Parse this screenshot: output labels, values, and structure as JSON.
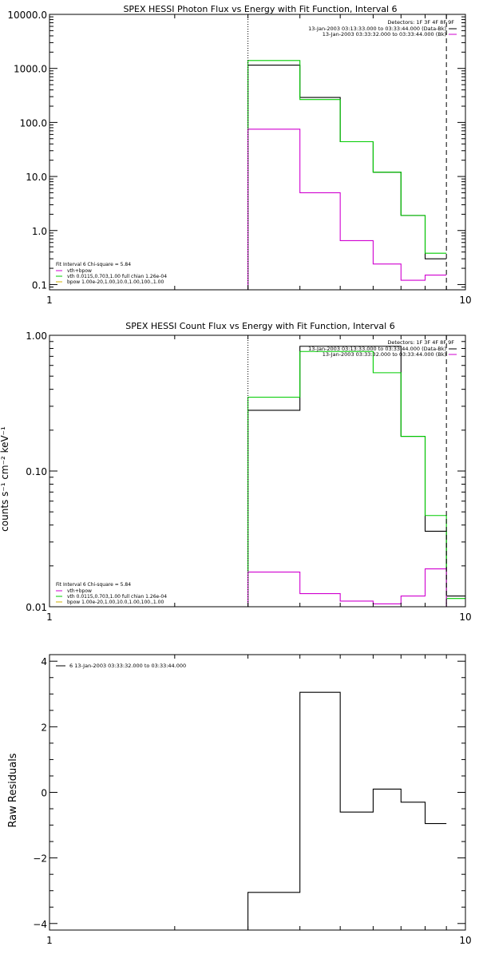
{
  "colors": {
    "data": "#000000",
    "vth": "#d000d0",
    "bpow": "#00cc00",
    "thick": "#d0b000"
  },
  "chart_data": [
    {
      "type": "line",
      "title": "SPEX HESSI Photon Flux vs Energy with Fit Function, Interval 6",
      "xscale": "log",
      "yscale": "log",
      "xlim": [
        1,
        10
      ],
      "ylim": [
        0.08,
        10000
      ],
      "xticks": [
        1,
        10
      ],
      "xtick_labels": [
        "1",
        "10"
      ],
      "yticks": [
        0.1,
        1,
        10,
        100,
        1000,
        10000
      ],
      "ytick_labels": [
        "0.1",
        "1.0",
        "10.0",
        "100.0",
        "1000.0",
        "10000.0"
      ],
      "ylabel": "",
      "legend_right": [
        "Detectors: 1F 3F 4F 8F 9F",
        "13-Jan-2003 03:13:33.000 to 03:33:44.000 (Data-Bk)",
        "13-Jan-2003 03:33:32.000 to 03:33:44.000 (Bk)"
      ],
      "legend_left_header": "Fit Interval 6   Chi-square = 5.84",
      "legend_left": [
        "vth+bpow",
        "vth 0.0115,0.703,1.00  full chian 1.26e-04",
        "bpow 1.00e-20,1.00,10.0,1.00,100.,1.00"
      ],
      "vlines": [
        {
          "x": 3,
          "style": "dotted"
        },
        {
          "x": 9,
          "style": "dashed"
        }
      ],
      "bin_edges": [
        3,
        4,
        5,
        6,
        7,
        8,
        9
      ],
      "series": [
        {
          "color": "#000000",
          "values": [
            1150,
            290,
            44,
            12,
            1.9,
            0.3
          ]
        },
        {
          "color": "#00cc00",
          "values": [
            1400,
            265,
            44,
            12,
            1.9,
            0.38
          ]
        },
        {
          "color": "#d000d0",
          "values": [
            75,
            5,
            0.65,
            0.24,
            0.12,
            0.15
          ]
        }
      ]
    },
    {
      "type": "line",
      "title": "SPEX HESSI Count Flux vs Energy with Fit Function, Interval 6",
      "xscale": "log",
      "yscale": "log",
      "xlim": [
        1,
        10
      ],
      "ylim": [
        0.01,
        1
      ],
      "xticks": [
        1,
        10
      ],
      "xtick_labels": [
        "1",
        "10"
      ],
      "yticks": [
        0.01,
        0.1,
        1
      ],
      "ytick_labels": [
        "0.01",
        "0.10",
        "1.00"
      ],
      "ylabel": "counts s⁻¹ cm⁻² keV⁻¹",
      "legend_right": [
        "Detectors: 1F 3F 4F 8F 9F",
        "13-Jan-2003 03:13:33.000 to 03:33:44.000 (Data-Bk)",
        "13-Jan-2003 03:33:32.000 to 03:33:44.000 (Bk)"
      ],
      "legend_left_header": "Fit Interval 6   Chi-square = 5.84",
      "legend_left": [
        "vth+bpow",
        "vth 0.0115,0.703,1.00  full chian 1.26e-04",
        "bpow 1.00e-20,1.00,10.0,1.00,100.,1.00"
      ],
      "vlines": [
        {
          "x": 3,
          "style": "dotted"
        },
        {
          "x": 9,
          "style": "dashed"
        }
      ],
      "bin_edges": [
        3,
        4,
        5,
        6,
        7,
        8,
        9,
        10
      ],
      "series": [
        {
          "color": "#000000",
          "values": [
            0.28,
            0.83,
            0.83,
            0.83,
            0.18,
            0.036,
            0.012
          ]
        },
        {
          "color": "#00cc00",
          "values": [
            0.35,
            0.76,
            0.76,
            0.53,
            0.18,
            0.047,
            0.0115
          ]
        },
        {
          "color": "#d000d0",
          "values": [
            0.018,
            0.0125,
            0.011,
            0.0105,
            0.012,
            0.019,
            0.0095
          ]
        }
      ]
    },
    {
      "type": "line",
      "title": "",
      "xscale": "log",
      "yscale": "linear",
      "xlim": [
        1,
        10
      ],
      "ylim": [
        -4.2,
        4.2
      ],
      "xticks": [
        1,
        10
      ],
      "xtick_labels": [
        "1",
        "10"
      ],
      "yticks": [
        -4,
        -2,
        0,
        2,
        4
      ],
      "ytick_labels": [
        "−4",
        "−2",
        "0",
        "2",
        "4"
      ],
      "ylabel": "Raw Residuals",
      "legend_item": "6  13-Jan-2003 03:33:32.000 to 03:33:44.000",
      "bin_edges": [
        3,
        4,
        5,
        6,
        7,
        8,
        9
      ],
      "series": [
        {
          "color": "#000000",
          "values": [
            -3.05,
            3.05,
            -0.6,
            0.1,
            -0.3,
            -0.95
          ]
        }
      ]
    }
  ]
}
